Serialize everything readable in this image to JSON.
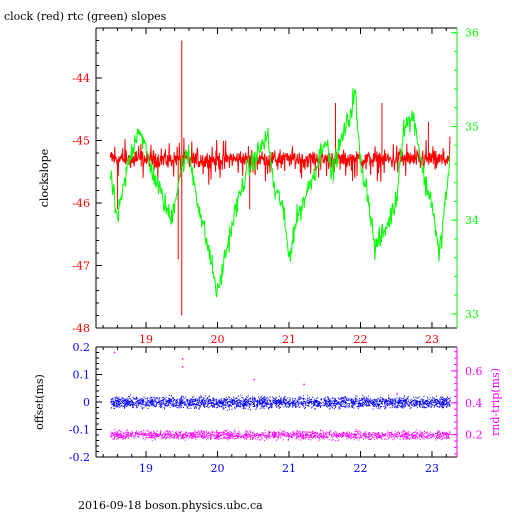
{
  "title": "clock (red) rtc (green) slopes",
  "footer": "2016-09-18  boson.physics.ubc.ca",
  "chart_data": [
    {
      "type": "line",
      "ylabel_left": "clockslope",
      "ylabel_right": "",
      "xlim": [
        18.3,
        23.35
      ],
      "ylim_left": [
        -48,
        -43.2
      ],
      "ylim_right": [
        32.85,
        36.05
      ],
      "x_ticks": [
        19,
        20,
        21,
        22,
        23
      ],
      "yticks_left": [
        -48,
        -47,
        -46,
        -45,
        -44
      ],
      "yticks_right": [
        33,
        34,
        35,
        36
      ],
      "tick_colors": {
        "x": "#ff0000",
        "left": "#ff0000",
        "right": "#00ff00"
      },
      "grid": false,
      "legend": "none",
      "series": [
        {
          "name": "clock",
          "axis": "left",
          "color": "#ff0000",
          "style": "noisy band",
          "x_range": [
            18.5,
            23.25
          ],
          "baseline": -45.3,
          "noise_amplitude": 0.18,
          "spikes": [
            {
              "x": 19.5,
              "y": -43.4
            },
            {
              "x": 19.5,
              "y": -47.8
            },
            {
              "x": 19.45,
              "y": -46.9
            },
            {
              "x": 18.6,
              "y": -46.1
            },
            {
              "x": 20.45,
              "y": -46.1
            },
            {
              "x": 21.65,
              "y": -44.4
            },
            {
              "x": 22.3,
              "y": -44.4
            },
            {
              "x": 22.95,
              "y": -44.7
            }
          ]
        },
        {
          "name": "rtc",
          "axis": "right",
          "color": "#00ff00",
          "style": "wandering trace",
          "x_range": [
            18.5,
            23.25
          ],
          "knots": [
            [
              18.5,
              34.5
            ],
            [
              18.6,
              34.0
            ],
            [
              18.75,
              34.6
            ],
            [
              18.9,
              35.0
            ],
            [
              19.05,
              34.6
            ],
            [
              19.2,
              34.3
            ],
            [
              19.35,
              34.0
            ],
            [
              19.5,
              34.6
            ],
            [
              19.6,
              34.7
            ],
            [
              19.75,
              34.1
            ],
            [
              19.9,
              33.6
            ],
            [
              20.0,
              33.2
            ],
            [
              20.1,
              33.6
            ],
            [
              20.25,
              34.1
            ],
            [
              20.4,
              34.5
            ],
            [
              20.55,
              34.7
            ],
            [
              20.7,
              34.9
            ],
            [
              20.8,
              34.3
            ],
            [
              20.9,
              34.2
            ],
            [
              21.0,
              33.6
            ],
            [
              21.1,
              34.0
            ],
            [
              21.25,
              34.3
            ],
            [
              21.4,
              34.6
            ],
            [
              21.5,
              34.9
            ],
            [
              21.6,
              34.5
            ],
            [
              21.75,
              34.9
            ],
            [
              21.85,
              35.1
            ],
            [
              21.92,
              35.4
            ],
            [
              22.0,
              34.6
            ],
            [
              22.1,
              34.3
            ],
            [
              22.2,
              33.7
            ],
            [
              22.35,
              33.9
            ],
            [
              22.5,
              34.2
            ],
            [
              22.6,
              35.0
            ],
            [
              22.75,
              35.1
            ],
            [
              22.9,
              34.4
            ],
            [
              23.0,
              34.2
            ],
            [
              23.1,
              33.6
            ],
            [
              23.2,
              34.3
            ],
            [
              23.25,
              34.6
            ]
          ],
          "noise_amplitude": 0.18
        }
      ]
    },
    {
      "type": "scatter",
      "ylabel_left": "offset(ms)",
      "ylabel_right": "rnd-trip(ms)",
      "xlim": [
        18.3,
        23.35
      ],
      "ylim_left": [
        -0.2,
        0.2
      ],
      "ylim_right": [
        0.06,
        0.75
      ],
      "x_ticks": [
        19,
        20,
        21,
        22,
        23
      ],
      "yticks_left": [
        -0.2,
        -0.1,
        0,
        0.1,
        0.2
      ],
      "yticks_right": [
        0.2,
        0.4,
        0.6
      ],
      "tick_colors": {
        "x": "#0000ff",
        "left": "#0000ff",
        "right": "#ff00ff"
      },
      "grid": false,
      "legend": "none",
      "series": [
        {
          "name": "offset",
          "axis": "left",
          "color": "#0000ff",
          "x_range": [
            18.5,
            23.25
          ],
          "center": 0.0,
          "spread": 0.03,
          "count": 2600
        },
        {
          "name": "rnd-trip",
          "axis": "right",
          "color": "#ff00ff",
          "x_range": [
            18.5,
            23.25
          ],
          "center": 0.2,
          "spread": 0.04,
          "count": 1900,
          "outliers": [
            {
              "x": 18.55,
              "y": 0.72
            },
            {
              "x": 19.5,
              "y": 0.68
            },
            {
              "x": 19.5,
              "y": 0.63
            },
            {
              "x": 20.5,
              "y": 0.55
            },
            {
              "x": 21.2,
              "y": 0.52
            },
            {
              "x": 22.5,
              "y": 0.46
            }
          ]
        }
      ]
    }
  ]
}
